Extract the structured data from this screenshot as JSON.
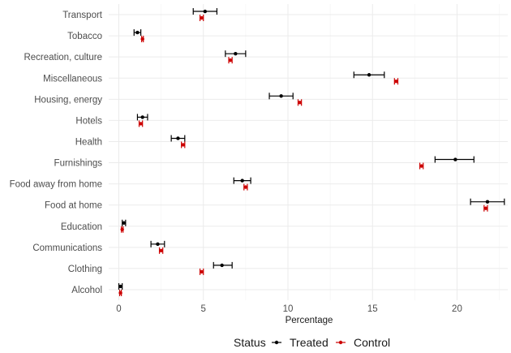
{
  "chart_data": {
    "type": "scatter",
    "xlabel": "Percentage",
    "ylabel": "",
    "xlim": [
      -0.6,
      23.0
    ],
    "xticks": [
      0,
      5,
      10,
      15,
      20
    ],
    "categories": [
      "Transport",
      "Tobacco",
      "Recreation, culture",
      "Miscellaneous",
      "Housing, energy",
      "Hotels",
      "Health",
      "Furnishings",
      "Food away from home",
      "Food at home",
      "Education",
      "Communications",
      "Clothing",
      "Alcohol"
    ],
    "series": [
      {
        "name": "Treated",
        "color": "#000000",
        "values": [
          5.1,
          1.1,
          6.9,
          14.8,
          9.6,
          1.4,
          3.5,
          19.9,
          7.3,
          21.8,
          0.3,
          2.3,
          6.1,
          0.1
        ],
        "lower": [
          4.4,
          0.9,
          6.3,
          13.9,
          8.9,
          1.1,
          3.1,
          18.7,
          6.8,
          20.8,
          0.2,
          1.9,
          5.6,
          0.0
        ],
        "upper": [
          5.8,
          1.3,
          7.5,
          15.7,
          10.3,
          1.7,
          3.9,
          21.0,
          7.8,
          22.8,
          0.4,
          2.7,
          6.7,
          0.2
        ]
      },
      {
        "name": "Control",
        "color": "#cc0000",
        "values": [
          4.9,
          1.4,
          6.6,
          16.4,
          10.7,
          1.3,
          3.8,
          17.9,
          7.5,
          21.7,
          0.2,
          2.5,
          4.9,
          0.1
        ],
        "lower": [
          4.8,
          1.35,
          6.5,
          16.3,
          10.6,
          1.2,
          3.7,
          17.8,
          7.4,
          21.6,
          0.15,
          2.4,
          4.8,
          0.05
        ],
        "upper": [
          5.0,
          1.45,
          6.7,
          16.5,
          10.8,
          1.4,
          3.9,
          18.0,
          7.6,
          21.8,
          0.25,
          2.6,
          5.0,
          0.15
        ]
      }
    ],
    "legend": {
      "title": "Status",
      "position": "bottom"
    }
  }
}
